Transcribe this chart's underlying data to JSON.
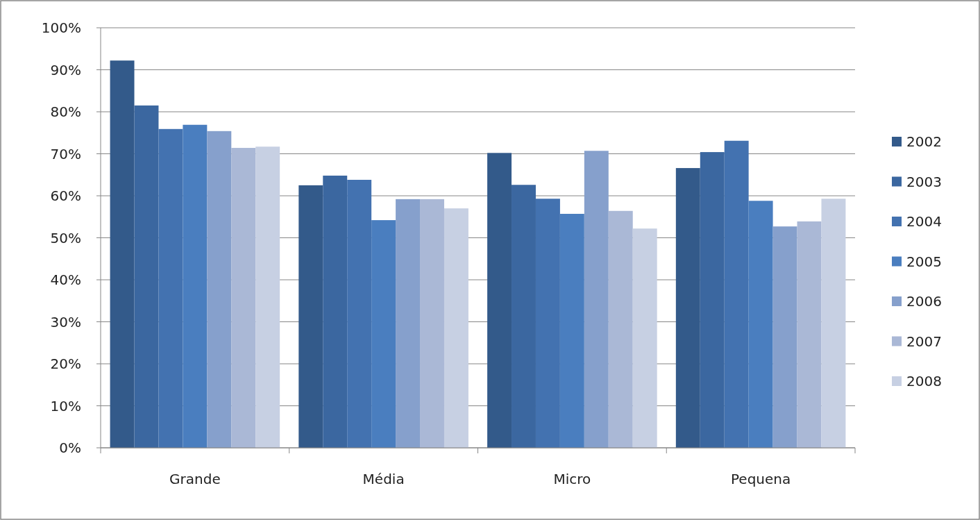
{
  "chart_data": {
    "type": "bar",
    "categories": [
      "Grande",
      "Média",
      "Micro",
      "Pequena"
    ],
    "series": [
      {
        "name": "2002",
        "color": "#335a8a",
        "values": [
          92.2,
          62.5,
          70.2,
          66.6
        ]
      },
      {
        "name": "2003",
        "color": "#3b67a0",
        "values": [
          81.5,
          64.8,
          62.6,
          70.4
        ]
      },
      {
        "name": "2004",
        "color": "#4372b0",
        "values": [
          75.9,
          63.8,
          59.3,
          73.1
        ]
      },
      {
        "name": "2005",
        "color": "#4a7ebf",
        "values": [
          76.9,
          54.2,
          55.7,
          58.8
        ]
      },
      {
        "name": "2006",
        "color": "#86a0cc",
        "values": [
          75.4,
          59.2,
          70.7,
          52.7
        ]
      },
      {
        "name": "2007",
        "color": "#aab8d6",
        "values": [
          71.4,
          59.2,
          56.4,
          53.9
        ]
      },
      {
        "name": "2008",
        "color": "#c7d0e3",
        "values": [
          71.7,
          57.0,
          52.2,
          59.3
        ]
      }
    ],
    "ylim": [
      0,
      100
    ],
    "yticks": [
      {
        "value": 0,
        "label": "0%"
      },
      {
        "value": 10,
        "label": "10%"
      },
      {
        "value": 20,
        "label": "20%"
      },
      {
        "value": 30,
        "label": "30%"
      },
      {
        "value": 40,
        "label": "40%"
      },
      {
        "value": 50,
        "label": "50%"
      },
      {
        "value": 60,
        "label": "60%"
      },
      {
        "value": 70,
        "label": "70%"
      },
      {
        "value": 80,
        "label": "80%"
      },
      {
        "value": 90,
        "label": "90%"
      },
      {
        "value": 100,
        "label": "100%"
      }
    ],
    "grid": "y",
    "legend": "right"
  }
}
